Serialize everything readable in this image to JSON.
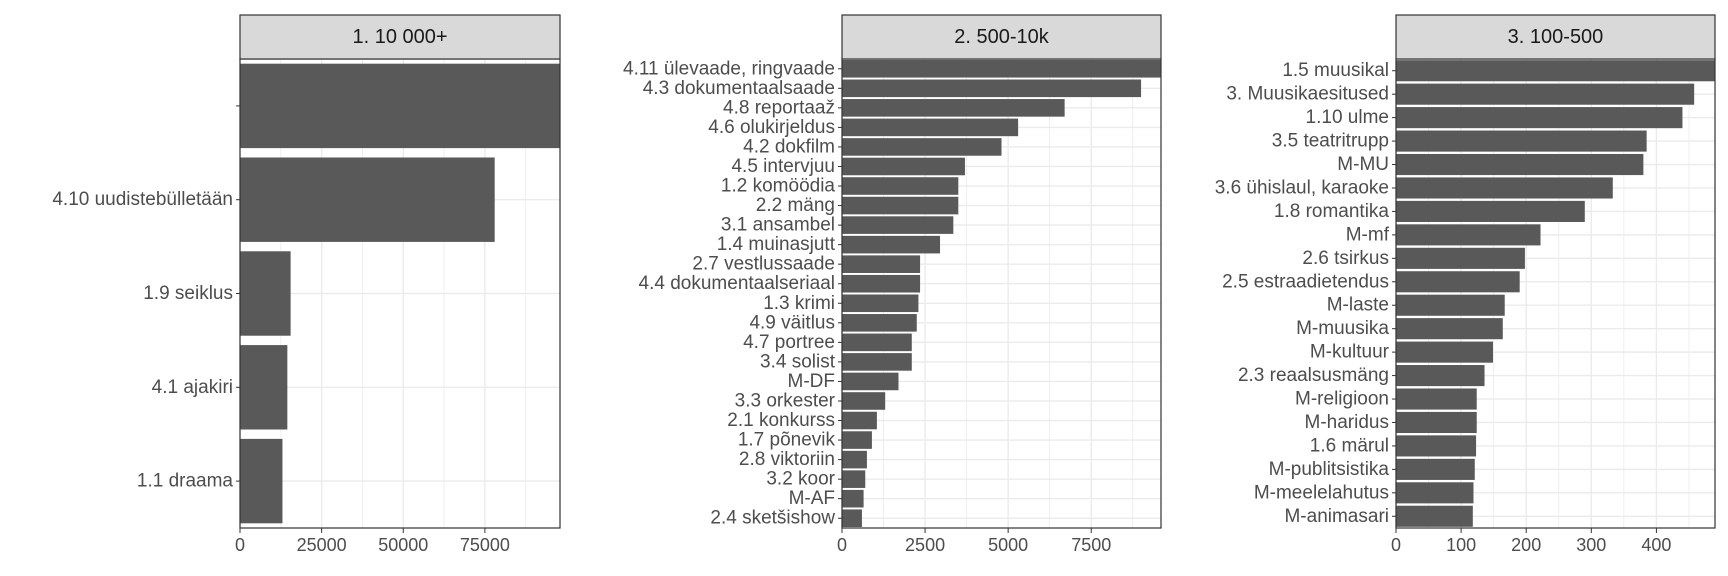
{
  "colors": {
    "bar": "#595959",
    "strip_fill": "#d9d9d9",
    "grid": "#ebebeb",
    "border": "#333333",
    "label": "#4d4d4d"
  },
  "chart_data": [
    {
      "type": "bar",
      "orientation": "horizontal",
      "title": "1. 10 000+",
      "categories": [
        "",
        "4.10 uudistebülletään",
        "1.9 seiklus",
        "4.1 ajakiri",
        "1.1 draama"
      ],
      "values": [
        100000,
        78000,
        15500,
        14500,
        13000
      ],
      "xlim": [
        0,
        98000
      ],
      "xticks": [
        0,
        25000,
        50000,
        75000
      ],
      "grid": true
    },
    {
      "type": "bar",
      "orientation": "horizontal",
      "title": "2. 500-10k",
      "categories": [
        "4.11 ülevaade, ringvaade",
        "4.3 dokumentaalsaade",
        "4.8 reportaaž",
        "4.6 olukirjeldus",
        "4.2 dokfilm",
        "4.5 intervjuu",
        "1.2 komöödia",
        "2.2 mäng",
        "3.1 ansambel",
        "1.4 muinasjutt",
        "2.7 vestlussaade",
        "4.4 dokumentaalseriaal",
        "1.3 krimi",
        "4.9 väitlus",
        "4.7 portree",
        "3.4 solist",
        "M-DF",
        "3.3 orkester",
        "2.1 konkurss",
        "1.7 põnevik",
        "2.8 viktoriin",
        "3.2 koor",
        "M-AF",
        "2.4 sketšishow"
      ],
      "values": [
        9700,
        9000,
        6700,
        5300,
        4800,
        3700,
        3500,
        3500,
        3350,
        2950,
        2350,
        2350,
        2300,
        2250,
        2100,
        2100,
        1700,
        1300,
        1050,
        900,
        750,
        700,
        650,
        600
      ],
      "xlim": [
        0,
        9600
      ],
      "xticks": [
        0,
        2500,
        5000,
        7500
      ],
      "grid": true
    },
    {
      "type": "bar",
      "orientation": "horizontal",
      "title": "3. 100-500",
      "categories": [
        "1.5 muusikal",
        "3. Muusikaesitused",
        "1.10 ulme",
        "3.5 teatritrupp",
        "M-MU",
        "3.6 ühislaul, karaoke",
        "1.8 romantika",
        "M-mf",
        "2.6 tsirkus",
        "2.5 estraadietendus",
        "M-laste",
        "M-muusika",
        "M-kultuur",
        "2.3 reaalsusmäng",
        "M-religioon",
        "M-haridus",
        "1.6 märul",
        "M-publitsistika",
        "M-meelelahutus",
        "M-animasari"
      ],
      "values": [
        495,
        458,
        440,
        385,
        380,
        333,
        290,
        222,
        198,
        190,
        167,
        164,
        149,
        136,
        124,
        124,
        123,
        121,
        119,
        118
      ],
      "xlim": [
        0,
        490
      ],
      "xticks": [
        0,
        100,
        200,
        300,
        400
      ],
      "grid": true
    }
  ]
}
